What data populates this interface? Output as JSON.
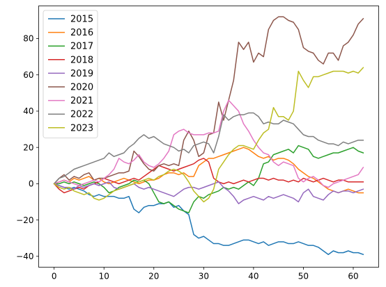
{
  "chart_data": {
    "type": "line",
    "title": "",
    "xlabel": "",
    "ylabel": "",
    "xlim": [
      -3.1,
      65.1
    ],
    "ylim": [
      -46,
      98
    ],
    "xticks": [
      0,
      10,
      20,
      30,
      40,
      50,
      60
    ],
    "yticks": [
      -40,
      -20,
      0,
      20,
      40,
      60,
      80
    ],
    "grid": false,
    "legend_position": "upper-left",
    "series": [
      {
        "name": "2015",
        "color": "#1f77b4",
        "values": [
          0,
          -1,
          -2,
          -3,
          -2,
          -3,
          -4,
          -6,
          -7,
          -6,
          -7,
          -7,
          -7,
          -8,
          -8,
          -7,
          -14,
          -16,
          -13,
          -12,
          -12,
          -11,
          -11,
          -10,
          -13,
          -12,
          -15,
          -17,
          -28,
          -30,
          -29,
          -31,
          -33,
          -33,
          -34,
          -34,
          -33,
          -32,
          -31,
          -31,
          -32,
          -33,
          -32,
          -34,
          -33,
          -32,
          -32,
          -33,
          -33,
          -32,
          -33,
          -34,
          -34,
          -35,
          -37,
          -39,
          -37,
          -38,
          -38,
          -37,
          -38,
          -38,
          -39
        ]
      },
      {
        "name": "2016",
        "color": "#ff7f0e",
        "values": [
          0,
          1,
          2,
          1,
          3,
          2,
          3,
          4,
          2,
          3,
          1,
          0,
          1,
          2,
          3,
          2,
          1,
          0,
          1,
          2,
          2,
          3,
          5,
          6,
          6,
          5,
          6,
          4,
          4,
          10,
          12,
          14,
          14,
          15,
          16,
          17,
          18,
          19,
          20,
          19,
          17,
          15,
          14,
          15,
          13,
          14,
          14,
          13,
          11,
          8,
          6,
          4,
          3,
          1,
          -1,
          -3,
          -4,
          -5,
          -4,
          -3,
          -4,
          -5,
          -5
        ]
      },
      {
        "name": "2017",
        "color": "#2ca02c",
        "values": [
          0,
          0,
          1,
          0,
          1,
          0,
          -1,
          0,
          1,
          0,
          -2,
          -5,
          -4,
          -2,
          -1,
          0,
          2,
          1,
          2,
          0,
          -5,
          -10,
          -11,
          -10,
          -12,
          -14,
          -15,
          -16,
          -10,
          -7,
          -8,
          -6,
          -5,
          -4,
          -2,
          -3,
          -2,
          -3,
          -1,
          1,
          -1,
          3,
          11,
          12,
          16,
          17,
          18,
          19,
          17,
          21,
          20,
          19,
          15,
          14,
          15,
          16,
          17,
          17,
          18,
          19,
          20,
          18,
          17
        ]
      },
      {
        "name": "2018",
        "color": "#d62728",
        "values": [
          0,
          -3,
          -5,
          -4,
          -3,
          -2,
          -3,
          -1,
          0,
          1,
          3,
          2,
          1,
          0,
          1,
          2,
          3,
          2,
          4,
          6,
          8,
          10,
          9,
          8,
          7,
          8,
          9,
          10,
          11,
          13,
          14,
          12,
          3,
          1,
          0,
          1,
          0,
          1,
          2,
          1,
          2,
          3,
          3,
          2,
          3,
          2,
          2,
          1,
          2,
          1,
          3,
          2,
          1,
          2,
          3,
          2,
          1,
          2,
          2,
          1,
          1,
          1,
          1
        ]
      },
      {
        "name": "2019",
        "color": "#9467bd",
        "values": [
          0,
          -1,
          -2,
          -2,
          -3,
          -1,
          -2,
          -1,
          0,
          -1,
          0,
          1,
          -2,
          -3,
          -2,
          -1,
          0,
          -2,
          -3,
          -2,
          -3,
          -4,
          -5,
          -6,
          -7,
          -5,
          -3,
          -2,
          -2,
          -3,
          -2,
          -1,
          0,
          1,
          -2,
          -4,
          -7,
          -11,
          -9,
          -8,
          -7,
          -8,
          -9,
          -7,
          -8,
          -7,
          -6,
          -7,
          -8,
          -10,
          -5,
          -3,
          -7,
          -8,
          -9,
          -6,
          -4,
          -5,
          -4,
          -4,
          -5,
          -4,
          -3
        ]
      },
      {
        "name": "2020",
        "color": "#8c564b",
        "values": [
          0,
          3,
          5,
          2,
          4,
          3,
          5,
          6,
          2,
          3,
          3,
          4,
          5,
          6,
          6,
          7,
          18,
          15,
          11,
          8,
          7,
          10,
          11,
          10,
          11,
          10,
          24,
          29,
          24,
          15,
          17,
          27,
          28,
          45,
          35,
          46,
          57,
          78,
          74,
          78,
          67,
          72,
          70,
          85,
          90,
          92,
          92,
          90,
          89,
          85,
          75,
          73,
          72,
          68,
          66,
          72,
          72,
          68,
          76,
          78,
          82,
          88,
          91
        ]
      },
      {
        "name": "2021",
        "color": "#e377c2",
        "values": [
          0,
          1,
          2,
          1,
          0,
          -1,
          0,
          1,
          2,
          1,
          3,
          5,
          8,
          14,
          12,
          11,
          13,
          16,
          12,
          10,
          9,
          11,
          14,
          18,
          27,
          29,
          30,
          28,
          27,
          27,
          27,
          28,
          28,
          29,
          40,
          46,
          43,
          40,
          33,
          29,
          24,
          20,
          17,
          16,
          12,
          10,
          12,
          11,
          10,
          3,
          1,
          3,
          4,
          2,
          -1,
          -2,
          0,
          1,
          2,
          3,
          4,
          5,
          9
        ]
      },
      {
        "name": "2022",
        "color": "#7f7f7f",
        "values": [
          0,
          3,
          4,
          6,
          8,
          9,
          10,
          11,
          12,
          13,
          14,
          17,
          15,
          16,
          17,
          20,
          22,
          25,
          27,
          25,
          26,
          24,
          22,
          21,
          20,
          18,
          19,
          17,
          21,
          22,
          23,
          22,
          17,
          26,
          38,
          35,
          37,
          38,
          38,
          39,
          39,
          37,
          33,
          34,
          33,
          33,
          35,
          34,
          33,
          30,
          27,
          26,
          26,
          24,
          23,
          22,
          22,
          21,
          23,
          22,
          23,
          24,
          24
        ]
      },
      {
        "name": "2023",
        "color": "#bcbd22",
        "values": [
          0,
          -2,
          -3,
          -2,
          -4,
          -5,
          -6,
          -5,
          -8,
          -9,
          -8,
          -6,
          -4,
          -3,
          -2,
          -1,
          0,
          1,
          2,
          3,
          2,
          4,
          5,
          7,
          8,
          7,
          5,
          1,
          -4,
          -7,
          -10,
          -8,
          -3,
          8,
          12,
          16,
          19,
          21,
          21,
          20,
          19,
          24,
          28,
          30,
          42,
          37,
          37,
          35,
          40,
          62,
          57,
          53,
          59,
          59,
          60,
          61,
          62,
          62,
          62,
          61,
          62,
          61,
          64
        ]
      }
    ]
  }
}
